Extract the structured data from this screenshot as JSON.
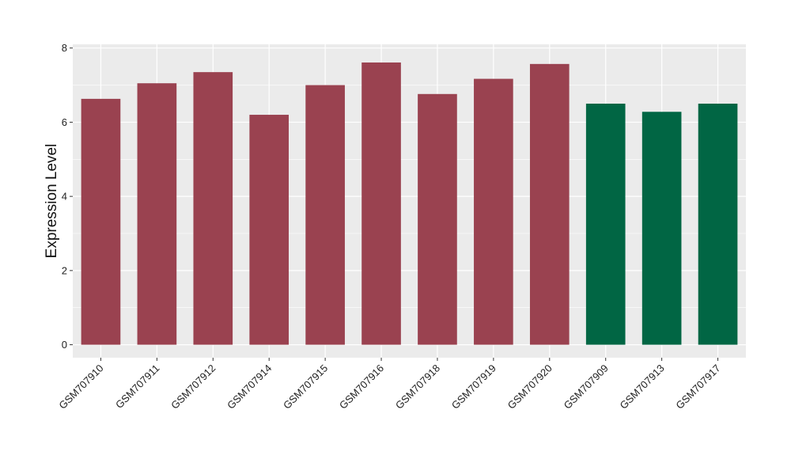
{
  "chart_data": {
    "type": "bar",
    "title": "",
    "xlabel": "",
    "ylabel": "Expression Level",
    "ylim": [
      -0.35,
      8.1
    ],
    "yticks": [
      0,
      2,
      4,
      6,
      8
    ],
    "grid": true,
    "categories": [
      "GSM707910",
      "GSM707911",
      "GSM707912",
      "GSM707914",
      "GSM707915",
      "GSM707916",
      "GSM707918",
      "GSM707919",
      "GSM707920",
      "GSM707909",
      "GSM707913",
      "GSM707917"
    ],
    "values": [
      6.63,
      7.05,
      7.35,
      6.2,
      7.0,
      7.61,
      6.76,
      7.17,
      7.57,
      6.5,
      6.28,
      6.5
    ],
    "groups": [
      0,
      0,
      0,
      0,
      0,
      0,
      0,
      0,
      0,
      1,
      1,
      1
    ],
    "group_colors": [
      "#9a4250",
      "#016644"
    ],
    "panel_color": "#ebebeb",
    "grid_color": "#ffffff"
  }
}
